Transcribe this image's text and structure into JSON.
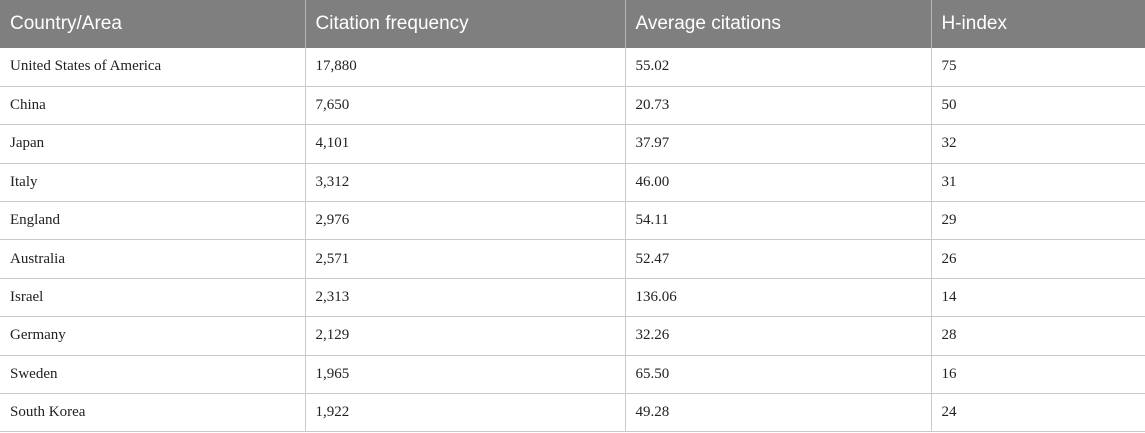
{
  "table": {
    "headers": [
      "Country/Area",
      "Citation frequency",
      "Average citations",
      "H-index"
    ],
    "rows": [
      [
        "United States of America",
        "17,880",
        "55.02",
        "75"
      ],
      [
        "China",
        "7,650",
        "20.73",
        "50"
      ],
      [
        "Japan",
        "4,101",
        "37.97",
        "32"
      ],
      [
        "Italy",
        "3,312",
        "46.00",
        "31"
      ],
      [
        "England",
        "2,976",
        "54.11",
        "29"
      ],
      [
        "Australia",
        "2,571",
        "52.47",
        "26"
      ],
      [
        "Israel",
        "2,313",
        "136.06",
        "14"
      ],
      [
        "Germany",
        "2,129",
        "32.26",
        "28"
      ],
      [
        "Sweden",
        "1,965",
        "65.50",
        "16"
      ],
      [
        "South Korea",
        "1,922",
        "49.28",
        "24"
      ]
    ]
  },
  "colors": {
    "header_background": "#807f7f",
    "header_text": "#ffffff",
    "grid_line": "#c9c9c9"
  }
}
